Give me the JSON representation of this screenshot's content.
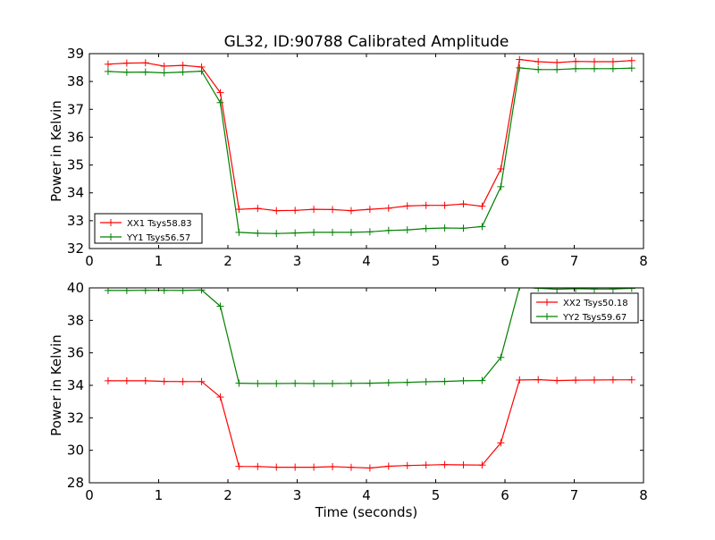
{
  "title": "GL32, ID:90788 Calibrated Amplitude",
  "colors": {
    "xx": "#ff0000",
    "yy": "#008000"
  },
  "chart_data": [
    {
      "type": "line",
      "ylabel": "Power in Kelvin",
      "xlabel": "",
      "xlim": [
        0,
        8
      ],
      "ylim": [
        32,
        39
      ],
      "xticks": [
        0,
        1,
        2,
        3,
        4,
        5,
        6,
        7,
        8
      ],
      "yticks": [
        32,
        33,
        34,
        35,
        36,
        37,
        38,
        39
      ],
      "legend_position": "lower-left",
      "x": [
        0.27,
        0.54,
        0.81,
        1.08,
        1.35,
        1.62,
        1.89,
        2.16,
        2.43,
        2.7,
        2.97,
        3.24,
        3.51,
        3.78,
        4.05,
        4.32,
        4.59,
        4.86,
        5.13,
        5.4,
        5.67,
        5.94,
        6.21,
        6.48,
        6.75,
        7.02,
        7.29,
        7.56,
        7.83
      ],
      "series": [
        {
          "name": "XX1 Tsys58.83",
          "color": "#ff0000",
          "values": [
            38.62,
            38.66,
            38.67,
            38.55,
            38.58,
            38.52,
            37.6,
            33.41,
            33.44,
            33.36,
            33.37,
            33.41,
            33.4,
            33.36,
            33.41,
            33.45,
            33.53,
            33.55,
            33.55,
            33.6,
            33.52,
            34.86,
            38.79,
            38.71,
            38.68,
            38.72,
            38.71,
            38.71,
            38.75
          ]
        },
        {
          "name": "YY1 Tsys56.57",
          "color": "#008000",
          "values": [
            38.36,
            38.33,
            38.34,
            38.31,
            38.34,
            38.37,
            37.24,
            32.58,
            32.55,
            32.54,
            32.56,
            32.58,
            32.58,
            32.58,
            32.6,
            32.65,
            32.67,
            32.72,
            32.74,
            32.73,
            32.79,
            34.22,
            38.49,
            38.43,
            38.43,
            38.46,
            38.46,
            38.46,
            38.48
          ]
        }
      ]
    },
    {
      "type": "line",
      "ylabel": "Power in Kelvin",
      "xlabel": "Time (seconds)",
      "xlim": [
        0,
        8
      ],
      "ylim": [
        28,
        40
      ],
      "xticks": [
        0,
        1,
        2,
        3,
        4,
        5,
        6,
        7,
        8
      ],
      "yticks": [
        28,
        30,
        32,
        34,
        36,
        38,
        40
      ],
      "legend_position": "upper-right",
      "x": [
        0.27,
        0.54,
        0.81,
        1.08,
        1.35,
        1.62,
        1.89,
        2.16,
        2.43,
        2.7,
        2.97,
        3.24,
        3.51,
        3.78,
        4.05,
        4.32,
        4.59,
        4.86,
        5.13,
        5.4,
        5.67,
        5.94,
        6.21,
        6.48,
        6.75,
        7.02,
        7.29,
        7.56,
        7.83
      ],
      "series": [
        {
          "name": "XX2 Tsys50.18",
          "color": "#ff0000",
          "values": [
            34.28,
            34.28,
            34.28,
            34.24,
            34.23,
            34.23,
            33.28,
            29.01,
            29.0,
            28.96,
            28.96,
            28.96,
            28.99,
            28.95,
            28.91,
            29.02,
            29.06,
            29.09,
            29.12,
            29.1,
            29.09,
            30.46,
            34.33,
            34.35,
            34.3,
            34.32,
            34.33,
            34.34,
            34.34
          ]
        },
        {
          "name": "YY2 Tsys59.67",
          "color": "#008000",
          "values": [
            39.84,
            39.84,
            39.85,
            39.85,
            39.84,
            39.87,
            38.87,
            34.13,
            34.11,
            34.11,
            34.12,
            34.11,
            34.11,
            34.12,
            34.13,
            34.16,
            34.18,
            34.22,
            34.24,
            34.28,
            34.3,
            35.72,
            40.05,
            39.98,
            39.92,
            39.95,
            39.93,
            39.93,
            39.97
          ]
        }
      ]
    }
  ]
}
